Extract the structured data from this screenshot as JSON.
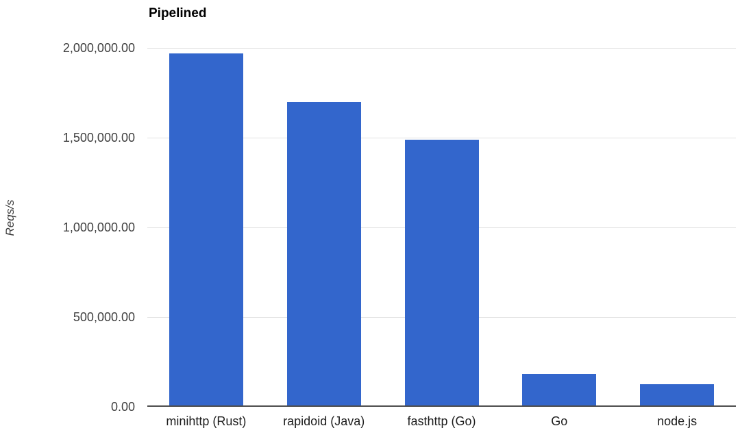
{
  "chart_data": {
    "type": "bar",
    "title": "Pipelined",
    "xlabel": "",
    "ylabel": "Reqs/s",
    "categories": [
      "minihttp (Rust)",
      "rapidoid (Java)",
      "fasthttp (Go)",
      "Go",
      "node.js"
    ],
    "values": [
      1970000,
      1700000,
      1490000,
      185000,
      125000
    ],
    "ylim": [
      0,
      2000000
    ],
    "y_ticks": [
      0,
      500000,
      1000000,
      1500000,
      2000000
    ],
    "y_tick_labels": [
      "0.00",
      "500,000.00",
      "1,000,000.00",
      "1,500,000.00",
      "2,000,000.00"
    ],
    "grid": true,
    "legend_position": "none",
    "series_name": "Reqs/s"
  },
  "colors": {
    "bar": "#3366cc",
    "gridline": "#e3e3e3",
    "axis_line": "#4d4d4d",
    "title_text": "#000000",
    "tick_text": "#404040"
  }
}
